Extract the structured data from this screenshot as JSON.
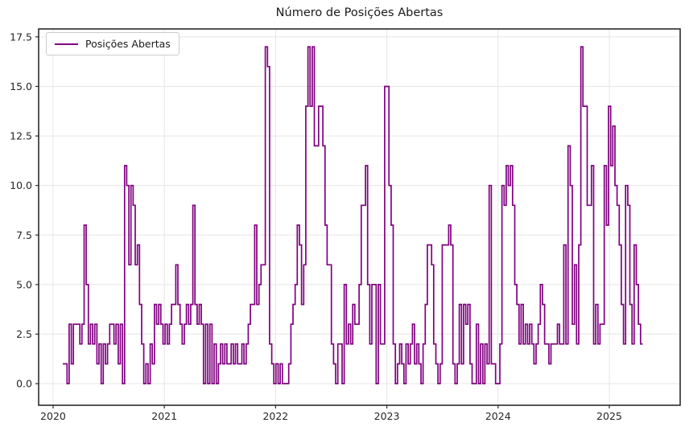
{
  "title": "Número de Posições Abertas",
  "legend": {
    "label": "Posições Abertas"
  },
  "chart_data": {
    "type": "line",
    "title": "Número de Posições Abertas",
    "xlabel": "",
    "ylabel": "",
    "grid": true,
    "legend_position": "upper left",
    "draw_style": "steps-post",
    "line_color": "#800080",
    "grid_color": "#e6e6e6",
    "spine_color": "#2b2b2b",
    "tick_label_color": "#262626",
    "x_ticks": [
      2020,
      2021,
      2022,
      2023,
      2024,
      2025
    ],
    "x_tick_labels": [
      "2020",
      "2021",
      "2022",
      "2023",
      "2024",
      "2025"
    ],
    "y_ticks": [
      0,
      2.5,
      5,
      7.5,
      10,
      12.5,
      15,
      17.5
    ],
    "y_tick_labels": [
      "0.0",
      "2.5",
      "5.0",
      "7.5",
      "10.0",
      "12.5",
      "15.0",
      "17.5"
    ],
    "xlim": [
      2019.87,
      2025.637
    ],
    "ylim": [
      -1.09,
      17.9
    ],
    "series": [
      {
        "name": "Posições Abertas",
        "color": "#800080",
        "x_start_year": 2020.087,
        "x_step_years": 0.019165,
        "values": [
          1,
          1,
          0,
          3,
          1,
          3,
          3,
          3,
          2,
          3,
          8,
          5,
          2,
          3,
          2,
          3,
          1,
          2,
          0,
          2,
          1,
          2,
          3,
          3,
          2,
          3,
          1,
          3,
          0,
          11,
          10,
          6,
          10,
          9,
          6,
          7,
          4,
          2,
          0,
          1,
          0,
          2,
          1,
          4,
          3,
          4,
          3,
          2,
          3,
          2,
          3,
          4,
          4,
          6,
          4,
          3,
          2,
          3,
          4,
          3,
          4,
          9,
          4,
          3,
          4,
          3,
          0,
          3,
          0,
          3,
          0,
          2,
          0,
          1,
          2,
          1,
          2,
          1,
          1,
          2,
          1,
          2,
          1,
          1,
          2,
          1,
          2,
          3,
          4,
          4,
          8,
          4,
          5,
          6,
          6,
          17,
          16,
          2,
          1,
          0,
          1,
          0,
          1,
          0,
          0,
          0,
          1,
          3,
          4,
          5,
          8,
          7,
          4,
          6,
          14,
          17,
          14,
          17,
          12,
          12,
          14,
          14,
          12,
          8,
          6,
          6,
          2,
          1,
          0,
          2,
          2,
          0,
          5,
          2,
          3,
          2,
          4,
          3,
          3,
          5,
          9,
          9,
          11,
          5,
          2,
          5,
          5,
          0,
          5,
          2,
          2,
          15,
          15,
          10,
          8,
          2,
          0,
          1,
          2,
          1,
          0,
          2,
          1,
          2,
          3,
          1,
          2,
          1,
          0,
          2,
          4,
          7,
          7,
          6,
          2,
          1,
          0,
          1,
          7,
          7,
          7,
          8,
          7,
          1,
          0,
          1,
          4,
          1,
          4,
          3,
          4,
          1,
          0,
          0,
          3,
          0,
          2,
          0,
          2,
          1,
          10,
          1,
          1,
          0,
          0,
          2,
          10,
          9,
          11,
          10,
          11,
          9,
          5,
          4,
          2,
          4,
          2,
          3,
          2,
          3,
          2,
          1,
          2,
          3,
          5,
          4,
          2,
          2,
          1,
          2,
          2,
          2,
          3,
          2,
          2,
          7,
          2,
          12,
          10,
          3,
          6,
          2,
          7,
          17,
          14,
          14,
          9,
          9,
          11,
          2,
          4,
          2,
          3,
          3,
          11,
          8,
          14,
          11,
          13,
          10,
          9,
          7,
          4,
          2,
          10,
          9,
          4,
          2,
          7,
          5,
          3,
          2
        ]
      }
    ]
  }
}
